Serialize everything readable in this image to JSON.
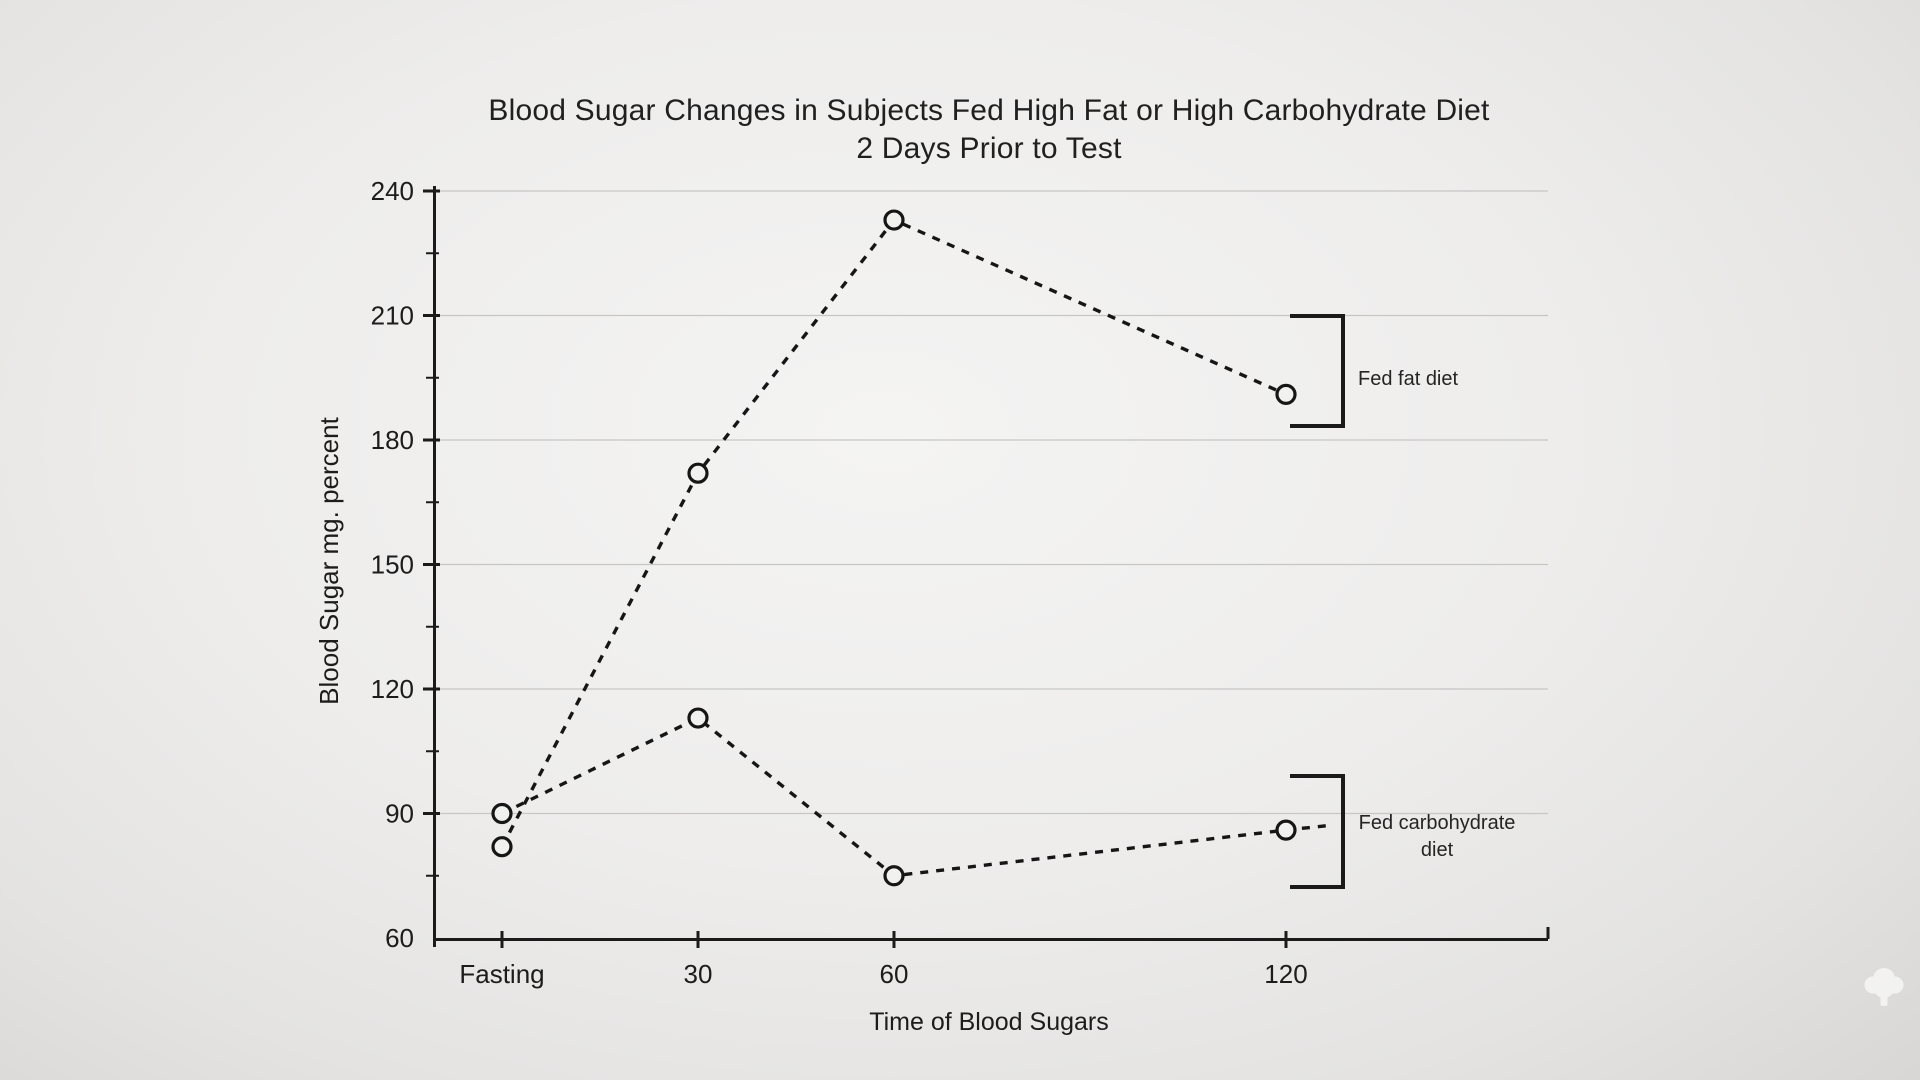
{
  "chart_data": {
    "type": "line",
    "title": "Blood Sugar Changes in Subjects Fed High Fat or High Carbohydrate Diet",
    "subtitle": "2 Days Prior to Test",
    "xlabel": "Time of Blood Sugars",
    "ylabel": "Blood Sugar mg. percent",
    "x_tick_labels": [
      "Fasting",
      "30",
      "60",
      "120"
    ],
    "x_values_minutes": [
      0,
      30,
      60,
      120
    ],
    "y_ticks": [
      60,
      90,
      120,
      150,
      180,
      210,
      240
    ],
    "ylim": [
      60,
      240
    ],
    "grid": "horizontal-only",
    "line_style": "dashed",
    "marker": "open-circle",
    "line_color": "#161616",
    "gridline_color": "#c7c6c5",
    "axis_color": "#1b1b1b",
    "legend_position": "right-of-last-points-with-brackets",
    "series": [
      {
        "name": "Fed fat diet",
        "values": [
          82,
          172,
          233,
          191
        ]
      },
      {
        "name": "Fed carbohydrate diet",
        "values": [
          90,
          113,
          75,
          86
        ]
      }
    ],
    "legend": [
      {
        "label": "Fed fat diet",
        "lines": [
          "Fed fat diet"
        ]
      },
      {
        "label": "Fed carbohydrate diet",
        "lines": [
          "Fed carbohydrate",
          "diet"
        ]
      }
    ]
  },
  "watermark": {
    "icon": "tree-icon"
  }
}
